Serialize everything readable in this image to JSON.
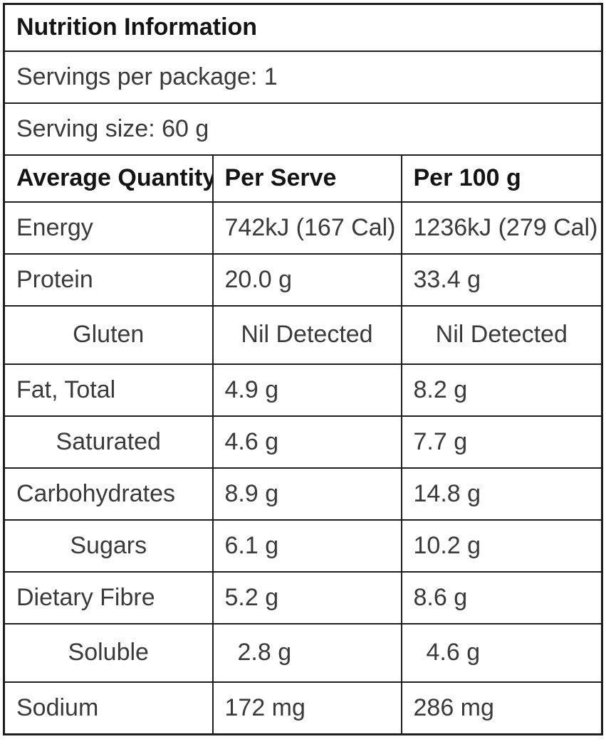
{
  "colors": {
    "background": "#ffffff",
    "border": "#1e1e1e",
    "heading_text": "#141414",
    "body_text": "#3a3a3a"
  },
  "table": {
    "title": "Nutrition Information",
    "servings_line": "Servings per package: 1",
    "serving_size_line": "Serving size: 60 g",
    "columns": [
      "Average Quantity",
      "Per Serve",
      "Per 100 g"
    ],
    "rows": [
      {
        "nutrient": "Energy",
        "per_serve": "742kJ (167 Cal)",
        "per_100g": "1236kJ (279 Cal)",
        "style": "main"
      },
      {
        "nutrient": "Protein",
        "per_serve": "20.0 g",
        "per_100g": "33.4 g",
        "style": "main"
      },
      {
        "nutrient": "Gluten",
        "per_serve": "Nil Detected",
        "per_100g": "Nil Detected",
        "style": "sub-center"
      },
      {
        "nutrient": "Fat, Total",
        "per_serve": "4.9 g",
        "per_100g": "8.2 g",
        "style": "main"
      },
      {
        "nutrient": "Saturated",
        "per_serve": "4.6 g",
        "per_100g": "7.7 g",
        "style": "sub"
      },
      {
        "nutrient": "Carbohydrates",
        "per_serve": "8.9 g",
        "per_100g": "14.8 g",
        "style": "main"
      },
      {
        "nutrient": "Sugars",
        "per_serve": "6.1 g",
        "per_100g": "10.2 g",
        "style": "sub"
      },
      {
        "nutrient": "Dietary Fibre",
        "per_serve": "5.2 g",
        "per_100g": "8.6 g",
        "style": "main"
      },
      {
        "nutrient": "Soluble",
        "per_serve": "2.8 g",
        "per_100g": "4.6 g",
        "style": "sub-indent"
      },
      {
        "nutrient": "Sodium",
        "per_serve": "172 mg",
        "per_100g": "286 mg",
        "style": "main"
      }
    ]
  }
}
